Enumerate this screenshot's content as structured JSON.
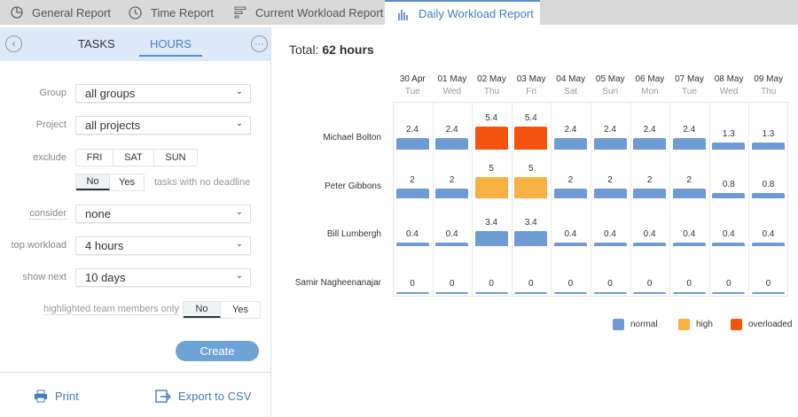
{
  "tabs": [
    {
      "label": "General Report",
      "icon": "pie-chart-icon"
    },
    {
      "label": "Time Report",
      "icon": "clock-icon"
    },
    {
      "label": "Current Workload Report",
      "icon": "bars-icon"
    },
    {
      "label": "Daily Workload Report",
      "icon": "column-chart-icon",
      "active": true
    }
  ],
  "sidebar": {
    "tabs": [
      "TASKS",
      "HOURS"
    ],
    "active_tab": "HOURS",
    "group": {
      "label": "Group",
      "value": "all groups"
    },
    "project": {
      "label": "Project",
      "value": "all projects"
    },
    "exclude": {
      "label": "exclude",
      "options": [
        "FRI",
        "SAT",
        "SUN"
      ]
    },
    "no_deadline": {
      "options": [
        "No",
        "Yes"
      ],
      "selected": "No",
      "label": "tasks with no deadline"
    },
    "consider": {
      "label": "consider",
      "value": "none"
    },
    "top_workload": {
      "label": "top workload",
      "value": "4 hours"
    },
    "show_next": {
      "label": "show next",
      "value": "10 days"
    },
    "highlighted": {
      "label": "highlighted team members only",
      "options": [
        "No",
        "Yes"
      ],
      "selected": "No"
    },
    "create_label": "Create",
    "print_label": "Print",
    "export_label": "Export to CSV"
  },
  "total": {
    "label": "Total:",
    "value": "62 hours"
  },
  "colors": {
    "normal": "#6f9bd4",
    "high": "#f7b042",
    "overloaded": "#f4530d",
    "accent": "#5b8fd2"
  },
  "chart_data": {
    "type": "bar",
    "categories": [
      "30 Apr",
      "01 May",
      "02 May",
      "03 May",
      "04 May",
      "05 May",
      "06 May",
      "07 May",
      "08 May",
      "09 May"
    ],
    "weekdays": [
      "Tue",
      "Wed",
      "Thu",
      "Fri",
      "Sat",
      "Sun",
      "Mon",
      "Tue",
      "Wed",
      "Thu"
    ],
    "series": [
      {
        "name": "Michael Bolton",
        "values": [
          2.4,
          2.4,
          5.4,
          5.4,
          2.4,
          2.4,
          2.4,
          2.4,
          1.3,
          1.3
        ],
        "status": [
          "normal",
          "normal",
          "overloaded",
          "overloaded",
          "normal",
          "normal",
          "normal",
          "normal",
          "normal",
          "normal"
        ]
      },
      {
        "name": "Peter Gibbons",
        "values": [
          2,
          2,
          5,
          5,
          2,
          2,
          2,
          2,
          0.8,
          0.8
        ],
        "status": [
          "normal",
          "normal",
          "high",
          "high",
          "normal",
          "normal",
          "normal",
          "normal",
          "normal",
          "normal"
        ]
      },
      {
        "name": "Bill Lumbergh",
        "values": [
          0.4,
          0.4,
          3.4,
          3.4,
          0.4,
          0.4,
          0.4,
          0.4,
          0.4,
          0.4
        ],
        "status": [
          "normal",
          "normal",
          "normal",
          "normal",
          "normal",
          "normal",
          "normal",
          "normal",
          "normal",
          "normal"
        ]
      },
      {
        "name": "Samir Nagheenanajar",
        "values": [
          0,
          0,
          0,
          0,
          0,
          0,
          0,
          0,
          0,
          0
        ],
        "status": [
          "normal",
          "normal",
          "normal",
          "normal",
          "normal",
          "normal",
          "normal",
          "normal",
          "normal",
          "normal"
        ]
      }
    ],
    "legend": [
      {
        "key": "normal",
        "label": "normal"
      },
      {
        "key": "high",
        "label": "high"
      },
      {
        "key": "overloaded",
        "label": "overloaded"
      }
    ],
    "legend_position": "bottom-right"
  }
}
